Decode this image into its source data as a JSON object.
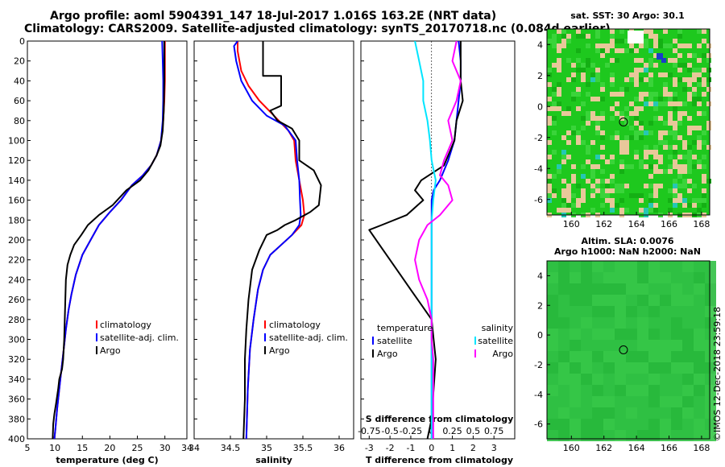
{
  "header": {
    "line1": "Argo profile: aoml 5904391_147 18-Jul-2017 1.016S 163.2E (NRT data)",
    "line2": "Climatology: CARS2009. Satellite-adjusted climatology: synTS_20170718.nc (0.084d earlier)"
  },
  "credit": "©IMOS 12-Dec-2018 23:59:18",
  "colors": {
    "climatology": "#ff0000",
    "satellite": "#0000ff",
    "argo": "#000000",
    "sat_salinity": "#00e5ff",
    "argo_salinity": "#ff00ff",
    "map_green": "#1ec81e",
    "map_tan": "#e8c89a"
  },
  "chart_data": [
    {
      "type": "line",
      "panel": "temperature",
      "xlabel": "temperature (deg C)",
      "ylabel": "",
      "xlim": [
        5,
        34
      ],
      "ylim": [
        400,
        0
      ],
      "xticks": [
        "5",
        "10",
        "15",
        "20",
        "25",
        "30",
        "34"
      ],
      "yticks": [
        "0",
        "20",
        "40",
        "60",
        "80",
        "100",
        "120",
        "140",
        "160",
        "180",
        "200",
        "220",
        "240",
        "260",
        "280",
        "300",
        "320",
        "340",
        "360",
        "380",
        "400"
      ],
      "legend": [
        "climatology",
        "satellite-adj. clim.",
        "Argo"
      ],
      "series": [
        {
          "name": "climatology",
          "color": "#ff0000",
          "points": [
            [
              30,
              0
            ],
            [
              30,
              20
            ],
            [
              30,
              40
            ],
            [
              29.9,
              60
            ],
            [
              29.7,
              80
            ],
            [
              29.3,
              100
            ],
            [
              28.5,
              115
            ],
            [
              27.5,
              125
            ],
            [
              26,
              135
            ],
            [
              24,
              145
            ],
            [
              22,
              160
            ],
            [
              20,
              172
            ],
            [
              18,
              185
            ],
            [
              16.5,
              200
            ],
            [
              15,
              215
            ],
            [
              13.8,
              235
            ],
            [
              13,
              255
            ],
            [
              12.5,
              270
            ],
            [
              12,
              290
            ],
            [
              11.6,
              310
            ],
            [
              11.2,
              330
            ],
            [
              10.8,
              350
            ],
            [
              10.4,
              370
            ],
            [
              10.1,
              390
            ],
            [
              9.9,
              400
            ]
          ]
        },
        {
          "name": "satellite-adj. clim.",
          "color": "#0000ff",
          "points": [
            [
              29.5,
              0
            ],
            [
              29.6,
              20
            ],
            [
              29.7,
              40
            ],
            [
              29.7,
              60
            ],
            [
              29.6,
              80
            ],
            [
              29.3,
              100
            ],
            [
              28.5,
              115
            ],
            [
              27.5,
              125
            ],
            [
              26,
              135
            ],
            [
              24,
              145
            ],
            [
              22,
              160
            ],
            [
              20,
              172
            ],
            [
              18,
              185
            ],
            [
              16.5,
              200
            ],
            [
              15,
              215
            ],
            [
              13.8,
              235
            ],
            [
              13,
              255
            ],
            [
              12.5,
              270
            ],
            [
              12,
              290
            ],
            [
              11.6,
              310
            ],
            [
              11.2,
              330
            ],
            [
              10.8,
              350
            ],
            [
              10.4,
              370
            ],
            [
              10.1,
              390
            ],
            [
              9.9,
              400
            ]
          ]
        },
        {
          "name": "Argo",
          "color": "#000000",
          "points": [
            [
              29.9,
              0
            ],
            [
              29.9,
              40
            ],
            [
              29.8,
              70
            ],
            [
              29.6,
              90
            ],
            [
              29.2,
              105
            ],
            [
              28.5,
              115
            ],
            [
              27,
              130
            ],
            [
              25.5,
              140
            ],
            [
              23,
              150
            ],
            [
              20.5,
              165
            ],
            [
              18,
              175
            ],
            [
              16,
              185
            ],
            [
              14.8,
              195
            ],
            [
              13.5,
              205
            ],
            [
              12.8,
              215
            ],
            [
              12.3,
              225
            ],
            [
              12,
              240
            ],
            [
              11.9,
              260
            ],
            [
              11.8,
              280
            ],
            [
              11.7,
              300
            ],
            [
              11.5,
              320
            ],
            [
              11.3,
              330
            ],
            [
              10.8,
              340
            ],
            [
              10.6,
              350
            ],
            [
              10.2,
              365
            ],
            [
              9.9,
              375
            ],
            [
              9.7,
              385
            ],
            [
              9.6,
              400
            ]
          ]
        }
      ]
    },
    {
      "type": "line",
      "panel": "salinity",
      "xlabel": "salinity",
      "ylabel": "",
      "xlim": [
        34,
        36.2
      ],
      "ylim": [
        400,
        0
      ],
      "xticks": [
        "34",
        "34.5",
        "35",
        "35.5",
        "36"
      ],
      "legend": [
        "climatology",
        "satellite-adj. clim.",
        "Argo"
      ],
      "series": [
        {
          "name": "climatology",
          "color": "#ff0000",
          "points": [
            [
              34.6,
              0
            ],
            [
              34.6,
              10
            ],
            [
              34.65,
              30
            ],
            [
              34.75,
              45
            ],
            [
              34.9,
              60
            ],
            [
              35.1,
              75
            ],
            [
              35.3,
              90
            ],
            [
              35.38,
              100
            ],
            [
              35.4,
              120
            ],
            [
              35.45,
              140
            ],
            [
              35.5,
              160
            ],
            [
              35.52,
              175
            ],
            [
              35.48,
              185
            ],
            [
              35.35,
              195
            ],
            [
              35.2,
              205
            ],
            [
              35.05,
              215
            ],
            [
              34.95,
              230
            ],
            [
              34.88,
              250
            ],
            [
              34.82,
              280
            ],
            [
              34.77,
              310
            ],
            [
              34.74,
              350
            ],
            [
              34.72,
              400
            ]
          ]
        },
        {
          "name": "satellite-adj. clim.",
          "color": "#0000ff",
          "points": [
            [
              34.6,
              0
            ],
            [
              34.55,
              5
            ],
            [
              34.58,
              20
            ],
            [
              34.65,
              40
            ],
            [
              34.8,
              60
            ],
            [
              35,
              75
            ],
            [
              35.25,
              85
            ],
            [
              35.4,
              100
            ],
            [
              35.42,
              120
            ],
            [
              35.45,
              140
            ],
            [
              35.46,
              160
            ],
            [
              35.47,
              175
            ],
            [
              35.45,
              185
            ],
            [
              35.35,
              195
            ],
            [
              35.2,
              205
            ],
            [
              35.05,
              215
            ],
            [
              34.95,
              230
            ],
            [
              34.88,
              250
            ],
            [
              34.82,
              280
            ],
            [
              34.77,
              310
            ],
            [
              34.74,
              350
            ],
            [
              34.72,
              400
            ]
          ]
        },
        {
          "name": "Argo",
          "color": "#000000",
          "points": [
            [
              34.95,
              0
            ],
            [
              34.95,
              35
            ],
            [
              35.2,
              35
            ],
            [
              35.2,
              65
            ],
            [
              35.05,
              70
            ],
            [
              35.15,
              80
            ],
            [
              35.35,
              88
            ],
            [
              35.45,
              100
            ],
            [
              35.45,
              120
            ],
            [
              35.65,
              130
            ],
            [
              35.75,
              145
            ],
            [
              35.72,
              165
            ],
            [
              35.6,
              172
            ],
            [
              35.4,
              180
            ],
            [
              35.25,
              185
            ],
            [
              35.15,
              190
            ],
            [
              35,
              195
            ],
            [
              34.9,
              210
            ],
            [
              34.8,
              230
            ],
            [
              34.75,
              260
            ],
            [
              34.72,
              290
            ],
            [
              34.7,
              320
            ],
            [
              34.7,
              360
            ],
            [
              34.68,
              400
            ]
          ]
        }
      ]
    },
    {
      "type": "line",
      "panel": "differences",
      "xlabel": "T difference from climatology",
      "xlabel_top": "S difference from climatology",
      "xlim": [
        -3.4,
        4
      ],
      "xlim_top": [
        -0.85,
        1
      ],
      "ylim": [
        400,
        0
      ],
      "xticks": [
        "-3",
        "-2",
        "-1",
        "0",
        "1",
        "2",
        "3"
      ],
      "xticks_top": [
        "-0.75",
        "-0.5",
        "-0.25",
        "0",
        "0.25",
        "0.5",
        "0.75"
      ],
      "legend": [
        "temperature",
        "satellite",
        "Argo",
        "salinity",
        "satellite",
        "Argo"
      ],
      "series": [
        {
          "name": "T satellite",
          "axis": "T",
          "color": "#0000ff",
          "points": [
            [
              1.3,
              0
            ],
            [
              1.4,
              20
            ],
            [
              1.4,
              40
            ],
            [
              1.3,
              60
            ],
            [
              1.2,
              80
            ],
            [
              1.1,
              100
            ],
            [
              0.8,
              120
            ],
            [
              0.4,
              140
            ],
            [
              0.1,
              150
            ],
            [
              0,
              160
            ],
            [
              0,
              180
            ],
            [
              0,
              200
            ],
            [
              0,
              400
            ]
          ]
        },
        {
          "name": "T Argo",
          "axis": "T",
          "color": "#000000",
          "points": [
            [
              1.4,
              0
            ],
            [
              1.4,
              40
            ],
            [
              1.5,
              60
            ],
            [
              1.2,
              80
            ],
            [
              1.1,
              100
            ],
            [
              0.9,
              110
            ],
            [
              0.6,
              125
            ],
            [
              -0.5,
              140
            ],
            [
              -0.8,
              150
            ],
            [
              -0.4,
              160
            ],
            [
              -1.2,
              175
            ],
            [
              -2.4,
              185
            ],
            [
              -3,
              190
            ],
            [
              -2.5,
              205
            ],
            [
              -2,
              220
            ],
            [
              -1.5,
              235
            ],
            [
              -1,
              250
            ],
            [
              -0.5,
              265
            ],
            [
              0,
              280
            ],
            [
              0.1,
              300
            ],
            [
              0.2,
              320
            ],
            [
              0.1,
              350
            ],
            [
              0,
              380
            ],
            [
              -0.2,
              400
            ]
          ]
        },
        {
          "name": "S satellite",
          "axis": "S",
          "color": "#00e5ff",
          "points": [
            [
              -0.2,
              0
            ],
            [
              -0.15,
              20
            ],
            [
              -0.1,
              40
            ],
            [
              -0.1,
              60
            ],
            [
              -0.05,
              80
            ],
            [
              -0.02,
              100
            ],
            [
              0,
              120
            ],
            [
              0.05,
              140
            ],
            [
              0.02,
              160
            ],
            [
              0,
              180
            ],
            [
              0,
              200
            ],
            [
              0,
              400
            ]
          ]
        },
        {
          "name": "S Argo",
          "axis": "S",
          "color": "#ff00ff",
          "points": [
            [
              0.3,
              0
            ],
            [
              0.25,
              20
            ],
            [
              0.35,
              40
            ],
            [
              0.3,
              60
            ],
            [
              0.2,
              80
            ],
            [
              0.25,
              100
            ],
            [
              0.15,
              120
            ],
            [
              0.1,
              135
            ],
            [
              0.2,
              145
            ],
            [
              0.25,
              160
            ],
            [
              0.1,
              175
            ],
            [
              -0.05,
              185
            ],
            [
              -0.15,
              200
            ],
            [
              -0.2,
              220
            ],
            [
              -0.15,
              240
            ],
            [
              -0.05,
              260
            ],
            [
              0,
              280
            ],
            [
              0,
              300
            ],
            [
              0.02,
              320
            ],
            [
              0.02,
              400
            ]
          ]
        }
      ]
    },
    {
      "type": "heatmap",
      "panel": "sat-sst-map",
      "title": "sat. SST: 30 Argo: 30.1",
      "xlim": [
        158.5,
        168.5
      ],
      "ylim": [
        -7,
        5
      ],
      "xticks": [
        "160",
        "162",
        "164",
        "166",
        "168"
      ],
      "yticks": [
        "4",
        "2",
        "0",
        "-2",
        "-4",
        "-6"
      ],
      "marker": [
        163.2,
        -1.0
      ]
    },
    {
      "type": "heatmap",
      "panel": "altim-sla-map",
      "title_line1": "Altim. SLA: 0.0076",
      "title_line2": "Argo h1000: NaN h2000: NaN",
      "xlim": [
        158.5,
        168.5
      ],
      "ylim": [
        -7,
        5
      ],
      "xticks": [
        "160",
        "162",
        "164",
        "166",
        "168"
      ],
      "yticks": [
        "4",
        "2",
        "0",
        "-2",
        "-4",
        "-6"
      ],
      "marker": [
        163.2,
        -1.0
      ]
    }
  ]
}
